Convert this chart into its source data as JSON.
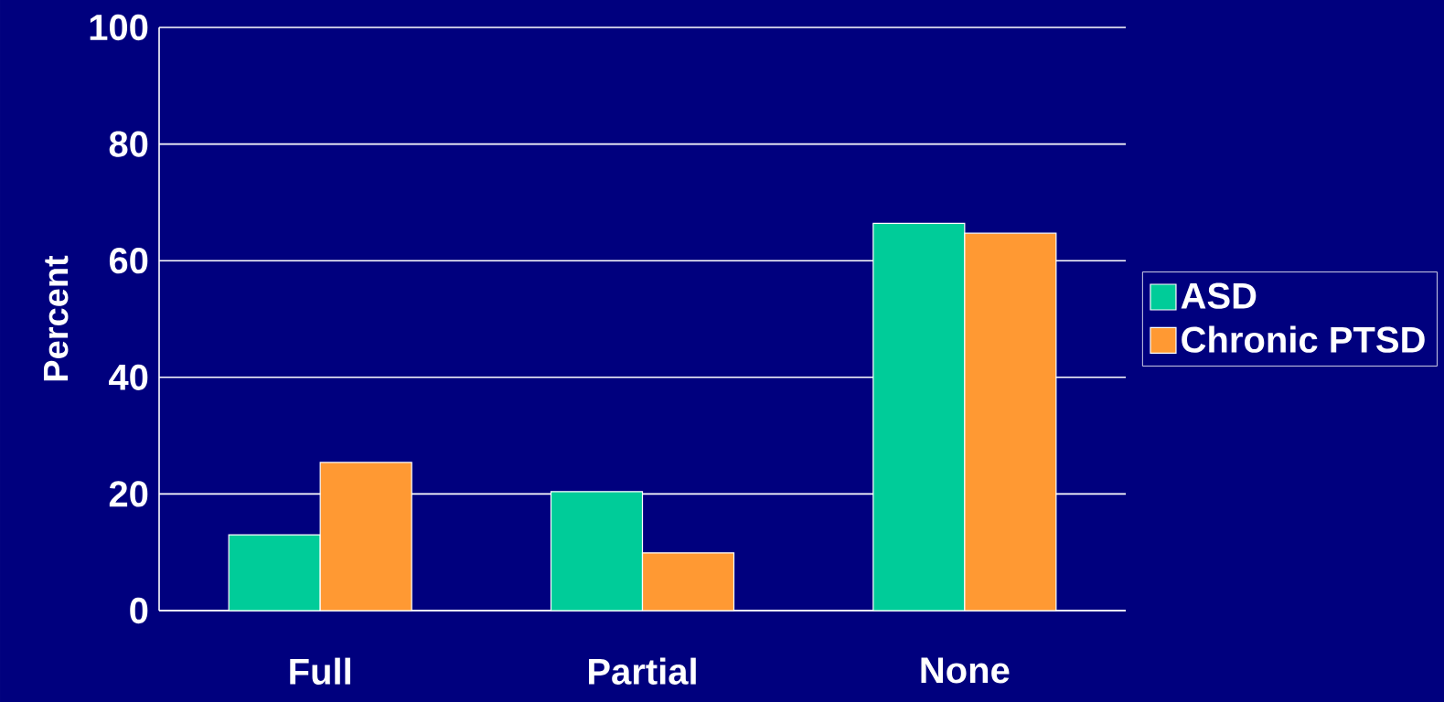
{
  "chart_data": {
    "type": "bar",
    "ylabel": "Percent",
    "categories": [
      "Full",
      "Partial",
      "None"
    ],
    "series": [
      {
        "name": "ASD",
        "color": "#00cc99",
        "values": [
          13.0,
          20.4,
          66.4
        ]
      },
      {
        "name": "Chronic PTSD",
        "color": "#ff9933",
        "values": [
          25.4,
          9.9,
          64.7
        ]
      }
    ],
    "ylim": [
      0,
      100
    ],
    "yticks": [
      0,
      20,
      40,
      60,
      80,
      100
    ],
    "grid": "y",
    "legend": "right"
  }
}
